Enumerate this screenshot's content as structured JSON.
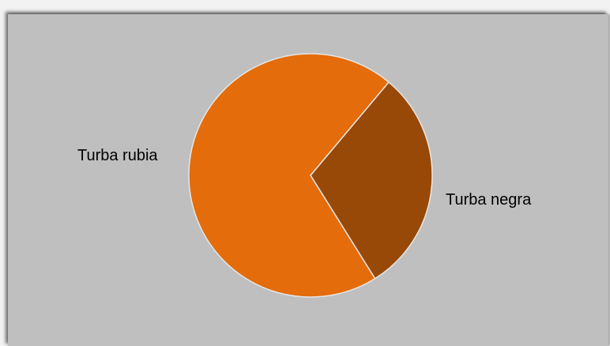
{
  "chart_data": {
    "type": "pie",
    "categories": [
      "Turba rubia",
      "Turba negra"
    ],
    "values": [
      70,
      30
    ],
    "colors": [
      "#e46c0a",
      "#984807"
    ],
    "slice_border_color": "#e6e6e6",
    "legend": "none"
  },
  "colors": {
    "background": "#bfbfbf"
  }
}
